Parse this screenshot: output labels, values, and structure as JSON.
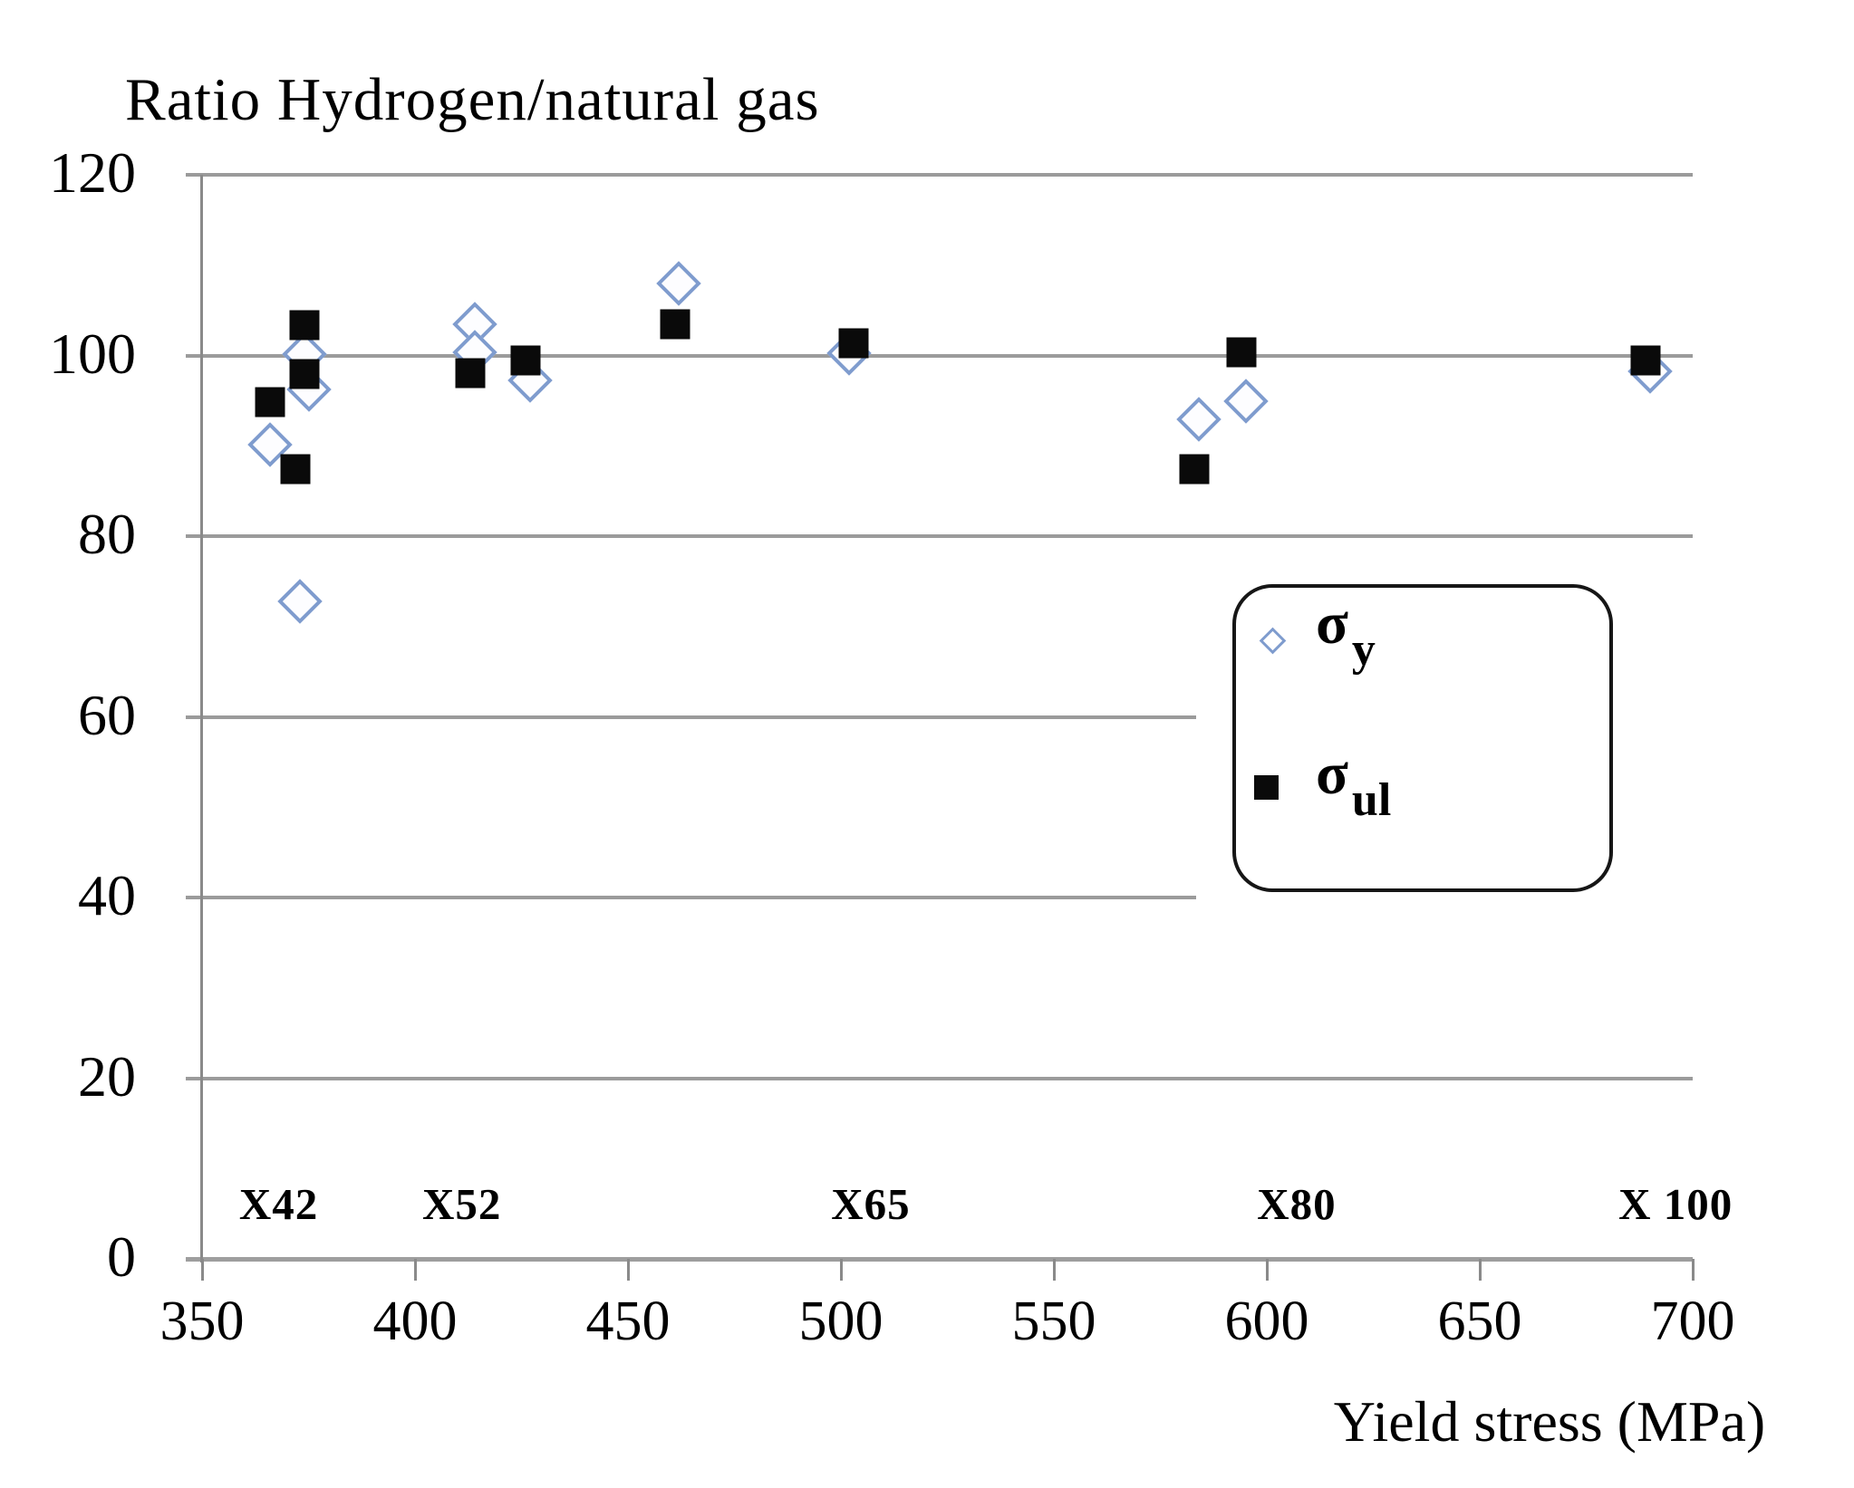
{
  "chart_data": {
    "type": "scatter",
    "title": "Ratio Hydrogen/natural gas",
    "xlabel": "Yield stress (MPa)",
    "ylabel": "Ratio Hydrogen/natural gas",
    "xlim": [
      350,
      700
    ],
    "ylim": [
      0,
      120
    ],
    "x_ticks": [
      350,
      400,
      450,
      500,
      550,
      600,
      650,
      700
    ],
    "y_ticks": [
      0,
      20,
      40,
      60,
      80,
      100,
      120
    ],
    "grid": "horizontal-only",
    "legend_position": "middle-right",
    "series": [
      {
        "name": "sigma_y",
        "symbol": "σ",
        "subscript": "y",
        "marker": "diamond",
        "color": "#7f9cce",
        "points": [
          [
            366,
            90.1
          ],
          [
            374,
            100.2
          ],
          [
            375,
            96.2
          ],
          [
            373,
            72.8
          ],
          [
            414,
            103.5
          ],
          [
            414,
            100.4
          ],
          [
            427,
            97.2
          ],
          [
            462,
            108.0
          ],
          [
            502,
            100.3
          ],
          [
            584,
            92.9
          ],
          [
            595,
            94.9
          ],
          [
            690,
            98.2
          ]
        ]
      },
      {
        "name": "sigma_ul",
        "symbol": "σ",
        "subscript": "ul",
        "marker": "square",
        "color": "#0a0a0a",
        "points": [
          [
            366,
            94.8
          ],
          [
            374,
            103.4
          ],
          [
            374,
            97.9
          ],
          [
            372,
            87.4
          ],
          [
            413,
            98.0
          ],
          [
            426,
            99.4
          ],
          [
            461,
            103.5
          ],
          [
            503,
            101.4
          ],
          [
            583,
            87.4
          ],
          [
            594,
            100.4
          ],
          [
            689,
            99.4
          ]
        ]
      }
    ],
    "annotations": [
      {
        "label": "X42",
        "x": 368,
        "y": 6
      },
      {
        "label": "X52",
        "x": 411,
        "y": 6
      },
      {
        "label": "X65",
        "x": 507,
        "y": 6
      },
      {
        "label": "X80",
        "x": 607,
        "y": 6
      },
      {
        "label": "X 100",
        "x": 696,
        "y": 6
      }
    ],
    "colors": {
      "background": "#ffffff",
      "gridline": "#9b9b9b",
      "axis": "#8a8a8a",
      "text": "#000000",
      "legend_border": "#161616",
      "diamond_stroke": "#7f9cce",
      "square_fill": "#0a0a0a"
    }
  }
}
